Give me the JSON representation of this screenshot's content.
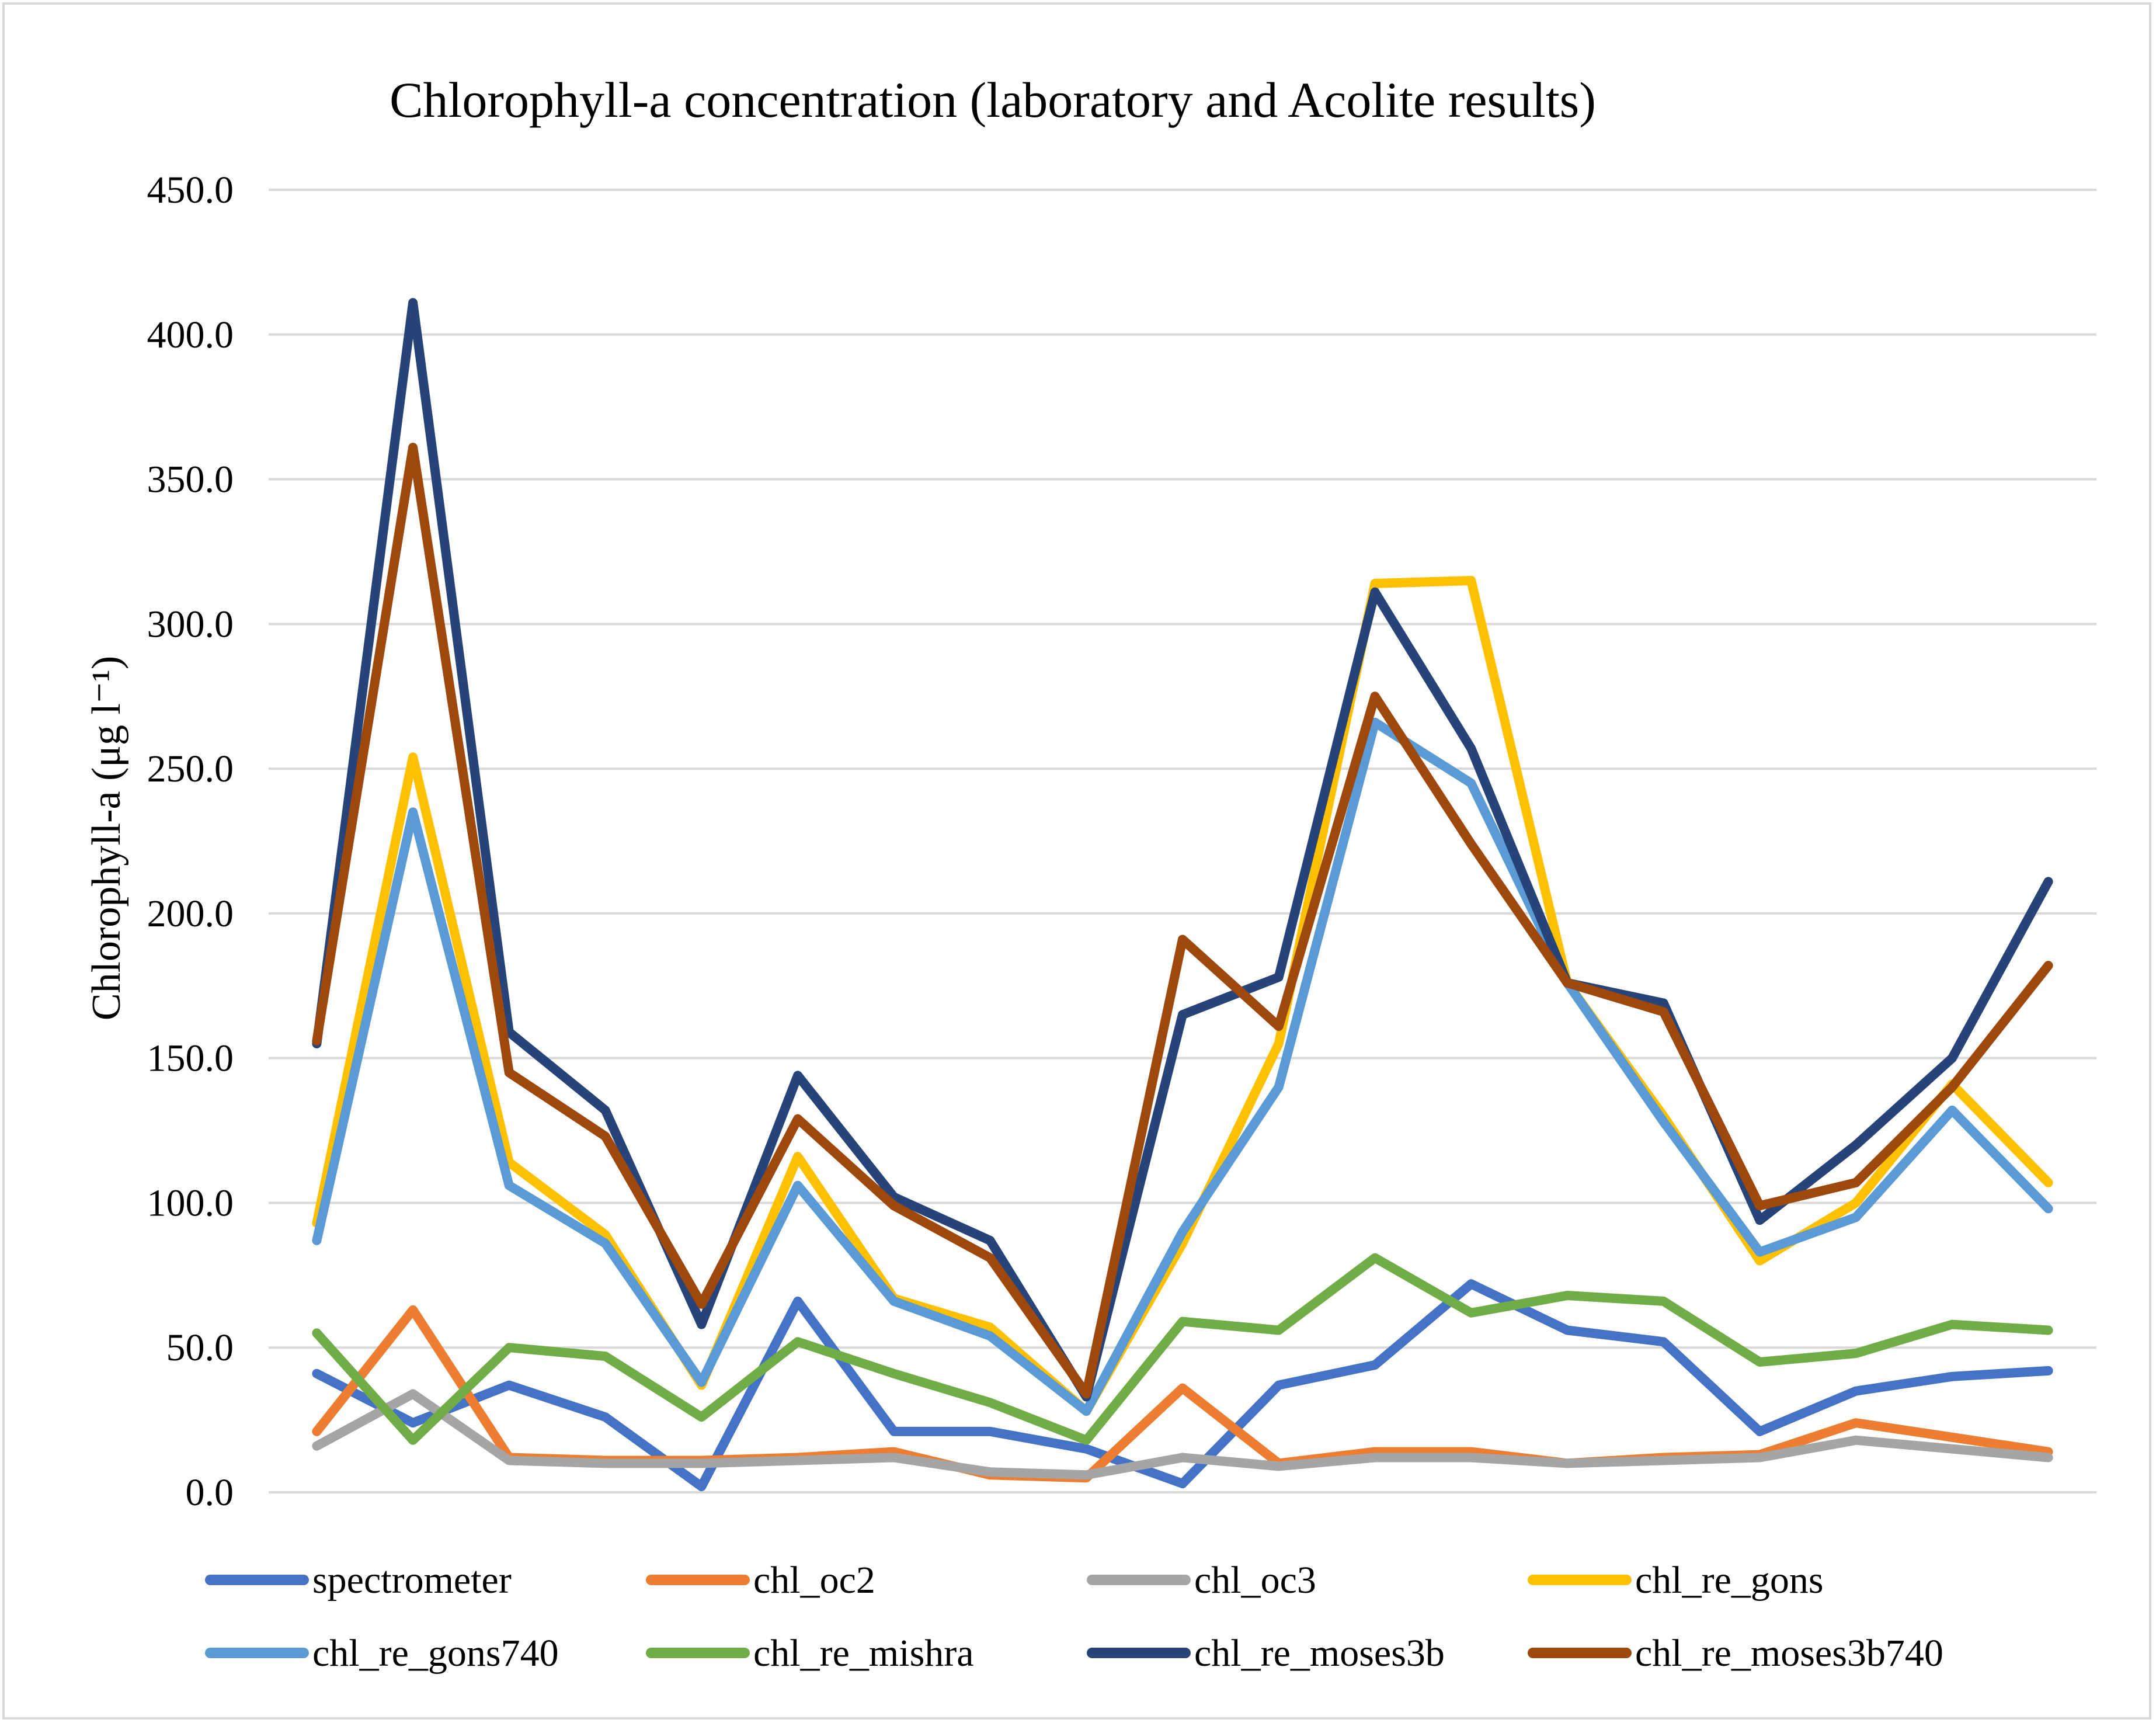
{
  "chart_data": {
    "type": "line",
    "title": "Chlorophyll-a concentration  (laboratory and Acolite results)",
    "xlabel": "",
    "ylabel": "Chlorophyll-a (μg l⁻¹)",
    "ylim": [
      0,
      450
    ],
    "yticks": [
      0,
      50,
      100,
      150,
      200,
      250,
      300,
      350,
      400,
      450
    ],
    "ytick_labels": [
      "0.0",
      "50.0",
      "100.0",
      "150.0",
      "200.0",
      "250.0",
      "300.0",
      "350.0",
      "400.0",
      "450.0"
    ],
    "grid": true,
    "legend_position": "bottom",
    "x": [
      1,
      2,
      3,
      4,
      5,
      6,
      7,
      8,
      9,
      10,
      11,
      12,
      13,
      14,
      15,
      16,
      17,
      18,
      19
    ],
    "series": [
      {
        "name": "spectrometer",
        "color": "#4472c4",
        "values": [
          41,
          24,
          37,
          26,
          2,
          66,
          21,
          21,
          15,
          3,
          37,
          44,
          72,
          56,
          52,
          21,
          35,
          40,
          42
        ]
      },
      {
        "name": "chl_oc2",
        "color": "#ed7d31",
        "values": [
          21,
          63,
          12,
          11,
          11,
          12,
          14,
          6,
          5,
          36,
          10,
          14,
          14,
          10,
          12,
          13,
          24,
          19,
          14
        ]
      },
      {
        "name": "chl_oc3",
        "color": "#a5a5a5",
        "values": [
          16,
          34,
          11,
          10,
          10,
          11,
          12,
          7,
          6,
          12,
          9,
          12,
          12,
          10,
          11,
          12,
          18,
          15,
          12
        ]
      },
      {
        "name": "chl_re_gons",
        "color": "#ffc000",
        "values": [
          93,
          254,
          114,
          89,
          37,
          116,
          67,
          57,
          28,
          86,
          155,
          314,
          315,
          176,
          130,
          80,
          100,
          141,
          107
        ]
      },
      {
        "name": "chl_re_gons740",
        "color": "#5b9bd5",
        "values": [
          87,
          235,
          106,
          86,
          38,
          106,
          66,
          54,
          28,
          90,
          140,
          266,
          245,
          176,
          128,
          83,
          95,
          132,
          98
        ]
      },
      {
        "name": "chl_re_mishra",
        "color": "#70ad47",
        "values": [
          55,
          18,
          50,
          47,
          26,
          52,
          41,
          31,
          18,
          59,
          56,
          81,
          62,
          68,
          66,
          45,
          48,
          58,
          56
        ]
      },
      {
        "name": "chl_re_moses3b",
        "color": "#264478",
        "values": [
          155,
          411,
          159,
          132,
          58,
          144,
          102,
          87,
          33,
          165,
          178,
          311,
          257,
          176,
          169,
          94,
          120,
          150,
          211
        ]
      },
      {
        "name": "chl_re_moses3b740",
        "color": "#9e480e",
        "values": [
          156,
          361,
          145,
          123,
          65,
          129,
          99,
          81,
          34,
          191,
          161,
          275,
          224,
          176,
          166,
          99,
          107,
          140,
          182
        ]
      }
    ]
  }
}
